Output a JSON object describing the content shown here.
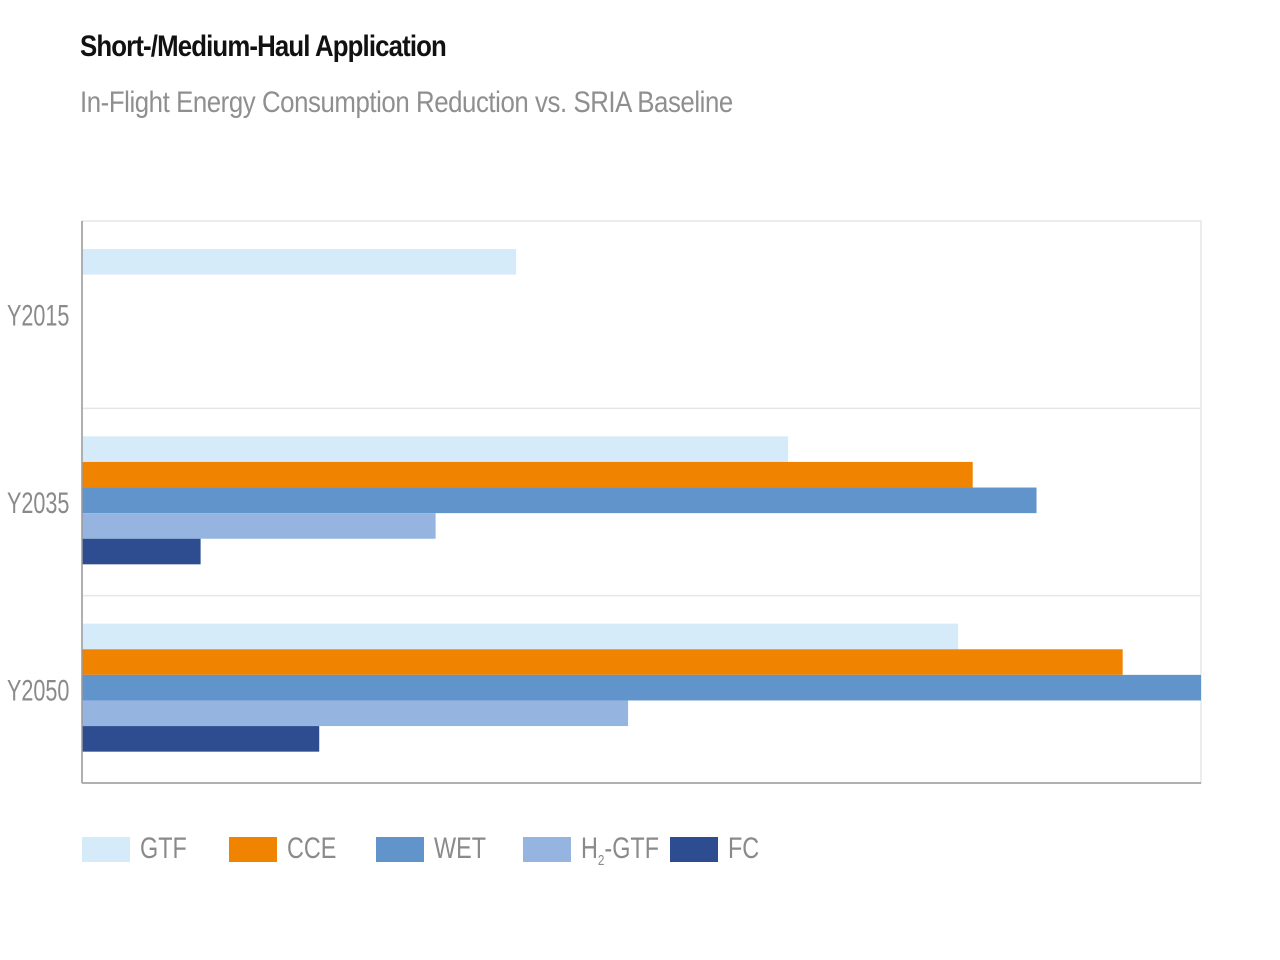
{
  "chart_data": {
    "type": "bar",
    "orientation": "horizontal",
    "title": "Short-/Medium-Haul Application",
    "subtitle": "In-Flight Energy Consumption Reduction vs. SRIA Baseline",
    "categories": [
      "Y2015",
      "Y2035",
      "Y2050"
    ],
    "xlim": [
      0,
      100
    ],
    "grid": false,
    "legend_position": "bottom",
    "series": [
      {
        "name": "GTF",
        "color": "#d6ebfa",
        "values": [
          38.8,
          63.1,
          78.3
        ]
      },
      {
        "name": "CCE",
        "color": "#f08300",
        "values": [
          null,
          79.6,
          93.0
        ]
      },
      {
        "name": "WET",
        "color": "#6094cb",
        "values": [
          null,
          85.3,
          100.0
        ]
      },
      {
        "name": "H2-GTF",
        "color": "#96b4e0",
        "values": [
          null,
          31.6,
          48.8
        ]
      },
      {
        "name": "FC",
        "color": "#2e4d90",
        "values": [
          null,
          10.6,
          21.2
        ]
      }
    ]
  },
  "legend": [
    {
      "main": "GTF",
      "sub": "",
      "rest": ""
    },
    {
      "main": "CCE",
      "sub": "",
      "rest": ""
    },
    {
      "main": "WET",
      "sub": "",
      "rest": ""
    },
    {
      "main": "H",
      "sub": "2",
      "rest": "-GTF"
    },
    {
      "main": "FC",
      "sub": "",
      "rest": ""
    }
  ]
}
